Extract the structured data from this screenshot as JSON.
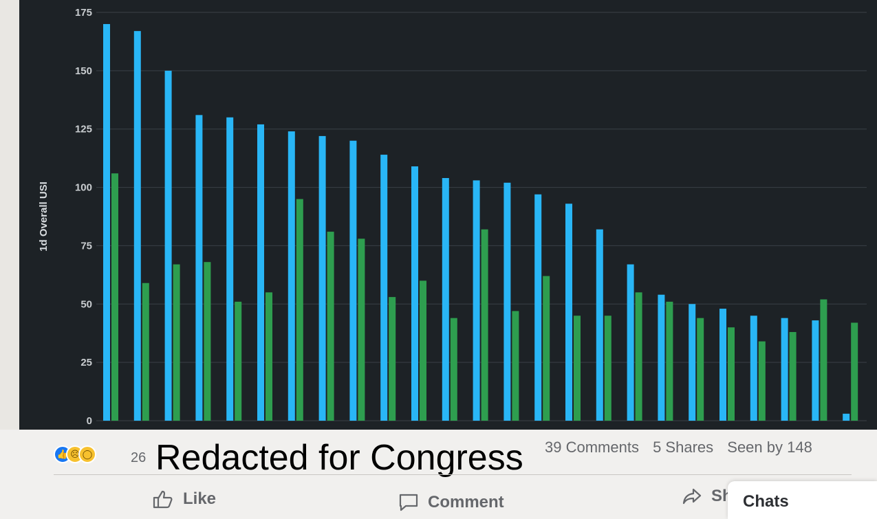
{
  "chart_data": {
    "type": "bar",
    "ylabel": "1d Overall USI",
    "ylim": [
      0,
      175
    ],
    "yticks": [
      0,
      25,
      50,
      75,
      100,
      125,
      150,
      175
    ],
    "series_colors": [
      "#29b6f6",
      "#2e9e4f"
    ],
    "series": [
      {
        "values": [
          170,
          167,
          150,
          131,
          130,
          127,
          124,
          122,
          120,
          114,
          109,
          104,
          103,
          102,
          97,
          93,
          82,
          67,
          54,
          50,
          48,
          45,
          44,
          43,
          3
        ]
      },
      {
        "values": [
          106,
          59,
          67,
          68,
          51,
          55,
          95,
          81,
          78,
          53,
          60,
          44,
          82,
          47,
          62,
          45,
          45,
          55,
          51,
          44,
          40,
          34,
          38,
          52,
          42
        ]
      }
    ]
  },
  "footer": {
    "reaction_count": "26",
    "comments": "39 Comments",
    "shares": "5 Shares",
    "seen_by": "Seen by 148",
    "redaction_text": "Redacted for Congress",
    "actions": {
      "like": "Like",
      "comment": "Comment",
      "share": "Sh"
    },
    "chats": "Chats"
  }
}
